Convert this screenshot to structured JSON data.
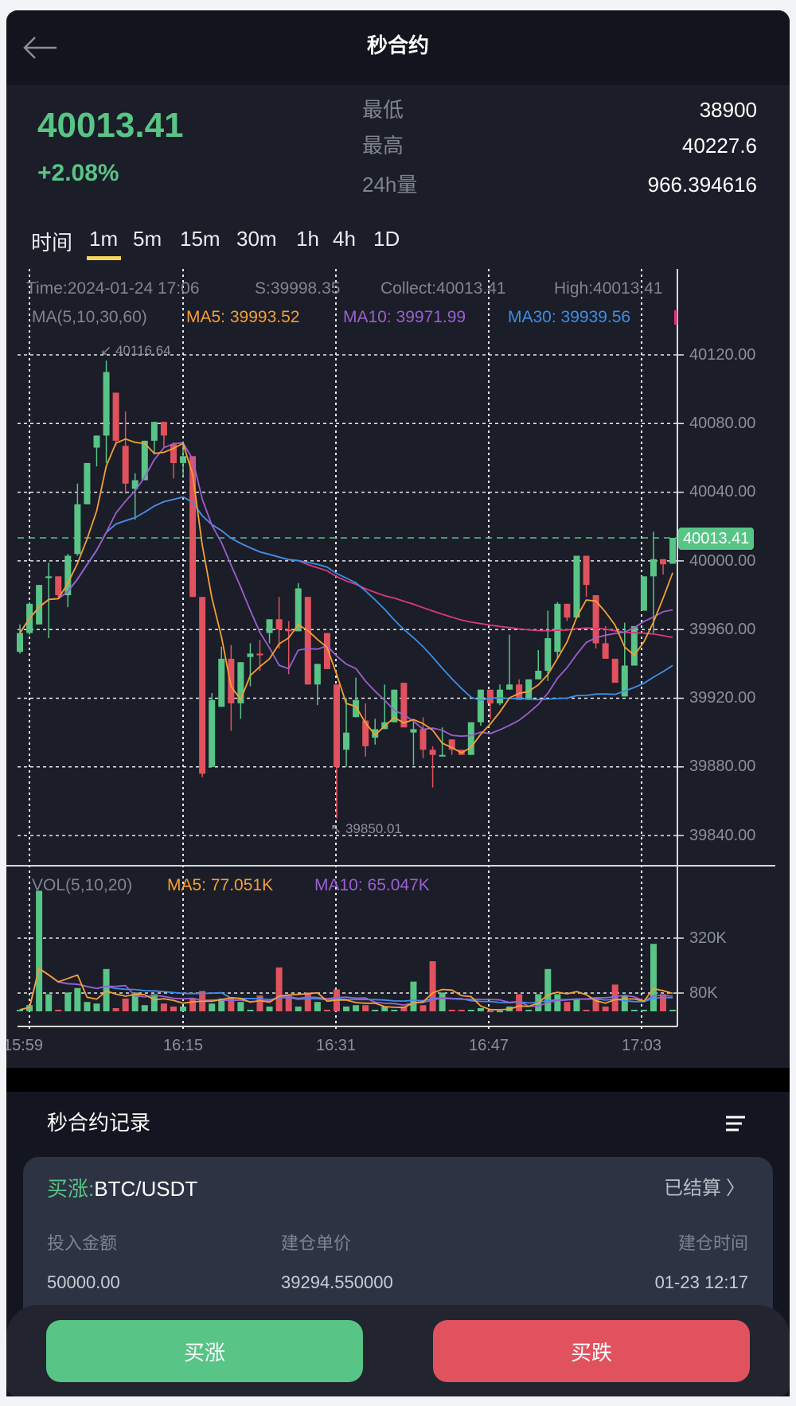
{
  "header": {
    "title": "秒合约",
    "back_icon": "arrow-left-icon"
  },
  "ticker": {
    "price": "40013.41",
    "change": "+2.08%",
    "stats": [
      {
        "label": "最低",
        "value": "38900"
      },
      {
        "label": "最高",
        "value": "40227.6"
      },
      {
        "label": "24h量",
        "value": "966.394616"
      }
    ]
  },
  "intervals": {
    "label": "时间",
    "items": [
      "1m",
      "5m",
      "15m",
      "30m",
      "1h",
      "4h",
      "1D"
    ],
    "active": "1m"
  },
  "colors": {
    "up": "#58c486",
    "down": "#e0525e",
    "ma5": "#f5a033",
    "ma10": "#9b5fd0",
    "ma30": "#3d8fe8",
    "ma60": "#d93a78",
    "active_tab": "#f5d65a"
  },
  "chart_info": {
    "time": "Time:2024-01-24 17:06",
    "open": "S:39998.35",
    "close": "Collect:40013.41",
    "high": "High:40013.41",
    "ma_label": "MA(5,10,30,60)",
    "ma5": "MA5: 39993.52",
    "ma10": "MA10: 39971.99",
    "ma30": "MA30: 39939.56",
    "vol_label": "VOL(5,10,20)",
    "vol_ma5": "MA5: 77.051K",
    "vol_ma10": "MA10: 65.047K",
    "max_mark": "40116.64",
    "min_mark": "39850.01",
    "last_price": "40013.41"
  },
  "chart_data": {
    "type": "candlestick",
    "price_ticks": [
      "40120.00",
      "40080.00",
      "40040.00",
      "40000.00",
      "39960.00",
      "39920.00",
      "39880.00",
      "39840.00"
    ],
    "volume_ticks": [
      "320K",
      "80K"
    ],
    "time_ticks": [
      "15:59",
      "16:15",
      "16:31",
      "16:47",
      "17:03"
    ],
    "ylim": [
      39840,
      40120
    ],
    "grid": true,
    "candles_fields": [
      "time",
      "open",
      "high",
      "low",
      "close",
      "volume"
    ],
    "candles": [
      [
        "15:58",
        39947,
        39963,
        39946,
        39958,
        7000
      ],
      [
        "15:59",
        39958,
        39976,
        39957,
        39975,
        27000
      ],
      [
        "16:00",
        39963,
        39986,
        39963,
        39986,
        527000
      ],
      [
        "16:01",
        39990,
        39999,
        39955,
        39991,
        75000
      ],
      [
        "16:02",
        39991,
        39991,
        39979,
        39980,
        7000
      ],
      [
        "16:03",
        39980,
        40004,
        39973,
        40003,
        82000
      ],
      [
        "16:04",
        40004,
        40045,
        40003,
        40033,
        102000
      ],
      [
        "16:05",
        40033,
        40057,
        40033,
        40057,
        41000
      ],
      [
        "16:06",
        40066,
        40073,
        40055,
        40073,
        34000
      ],
      [
        "16:07",
        40073,
        40116.64,
        40057,
        40110,
        185000
      ],
      [
        "16:08",
        40098,
        40098,
        40067,
        40070,
        14000
      ],
      [
        "16:09",
        40067,
        40087,
        40039,
        40045,
        56000
      ],
      [
        "16:10",
        40042,
        40051,
        40024,
        40047,
        82000
      ],
      [
        "16:11",
        40047,
        40070,
        40047,
        40070,
        27000
      ],
      [
        "16:12",
        40070,
        40081,
        40062,
        40081,
        75000
      ],
      [
        "16:13",
        40081,
        40081,
        40066,
        40073,
        34000
      ],
      [
        "16:14",
        40068,
        40069,
        40048,
        40057,
        21000
      ],
      [
        "16:15",
        40057,
        40069,
        40049,
        40061,
        21000
      ],
      [
        "16:16",
        40061,
        40061,
        39979,
        39979,
        56000
      ],
      [
        "16:17",
        39979,
        39979,
        39874,
        39876,
        89000
      ],
      [
        "16:18",
        39880,
        39923,
        39880,
        39919,
        34000
      ],
      [
        "16:19",
        39915,
        39950,
        39915,
        39943,
        56000
      ],
      [
        "16:20",
        39943,
        39951,
        39901,
        39917,
        62000
      ],
      [
        "16:21",
        39917,
        39941,
        39908,
        39941,
        41000
      ],
      [
        "16:22",
        39944,
        39952,
        39927,
        39946,
        7000
      ],
      [
        "16:23",
        39946,
        39954,
        39936,
        39945,
        69000
      ],
      [
        "16:24",
        39958,
        39966,
        39952,
        39966,
        21000
      ],
      [
        "16:25",
        39966,
        39979,
        39949,
        39960,
        192000
      ],
      [
        "16:26",
        39960,
        39965,
        39934,
        39959,
        69000
      ],
      [
        "16:27",
        39959,
        39987,
        39959,
        39984,
        21000
      ],
      [
        "16:28",
        39979,
        39979,
        39928,
        39928,
        82000
      ],
      [
        "16:29",
        39928,
        39940,
        39916,
        39940,
        41000
      ],
      [
        "16:30",
        39958,
        39958,
        39937,
        39937,
        7000
      ],
      [
        "16:31",
        39928,
        39928,
        39850.01,
        39880,
        96000
      ],
      [
        "16:32",
        39890,
        39920,
        39880,
        39900,
        21000
      ],
      [
        "16:33",
        39909,
        39932,
        39909,
        39919,
        27000
      ],
      [
        "16:34",
        39907,
        39917,
        39886,
        39892,
        27000
      ],
      [
        "16:35",
        39897,
        39908,
        39893,
        39902,
        7000
      ],
      [
        "16:36",
        39902,
        39928,
        39902,
        39906,
        21000
      ],
      [
        "16:37",
        39906,
        39925,
        39906,
        39925,
        7000
      ],
      [
        "16:38",
        39929,
        39929,
        39903,
        39903,
        21000
      ],
      [
        "16:39",
        39900,
        39907,
        39881,
        39902,
        130000
      ],
      [
        "16:40",
        39902,
        39909,
        39885,
        39890,
        27000
      ],
      [
        "16:41",
        39890,
        39892,
        39868,
        39887,
        219000
      ],
      [
        "16:42",
        39886,
        39903,
        39886,
        39887,
        82000
      ],
      [
        "16:43",
        39896,
        39896,
        39887,
        39890,
        7000
      ],
      [
        "16:44",
        39890,
        39890,
        39887,
        39887,
        7000
      ],
      [
        "16:45",
        39887,
        39906,
        39887,
        39906,
        7000
      ],
      [
        "16:46",
        39906,
        39925,
        39904,
        39925,
        14000
      ],
      [
        "16:47",
        39925,
        39925,
        39908,
        39917,
        3000
      ],
      [
        "16:48",
        39917,
        39928,
        39916,
        39925,
        3000
      ],
      [
        "16:49",
        39925,
        39957,
        39925,
        39928,
        21000
      ],
      [
        "16:50",
        39928,
        39931,
        39919,
        39919,
        75000
      ],
      [
        "16:51",
        39919,
        39931,
        39919,
        39931,
        7000
      ],
      [
        "16:52",
        39931,
        39948,
        39931,
        39936,
        75000
      ],
      [
        "16:53",
        39936,
        39971,
        39930,
        39955,
        185000
      ],
      [
        "16:54",
        39947,
        39976,
        39943,
        39975,
        75000
      ],
      [
        "16:55",
        39975,
        39975,
        39965,
        39967,
        41000
      ],
      [
        "16:56",
        39967,
        40003,
        39967,
        40003,
        55000
      ],
      [
        "16:57",
        40003,
        40003,
        39979,
        39986,
        7000
      ],
      [
        "16:58",
        39980,
        39980,
        39949,
        39952,
        55000
      ],
      [
        "16:59",
        39952,
        39962,
        39943,
        39943,
        21000
      ],
      [
        "17:00",
        39943,
        39943,
        39929,
        39929,
        117000
      ],
      [
        "17:01",
        39921,
        39964,
        39921,
        39939,
        69000
      ],
      [
        "17:02",
        39939,
        39962,
        39939,
        39962,
        7000
      ],
      [
        "17:03",
        39971,
        39991,
        39971,
        39991,
        7000
      ],
      [
        "17:04",
        39991,
        40017,
        39958,
        40001,
        295000
      ],
      [
        "17:05",
        40001,
        40001,
        39992,
        39998,
        75000
      ],
      [
        "17:06",
        39998.35,
        40013.41,
        39998.35,
        40013.41,
        7000
      ]
    ]
  },
  "records": {
    "title": "秒合约记录",
    "menu_icon": "list-filter-icon",
    "item": {
      "direction": "买涨:",
      "pair": "BTC/USDT",
      "status": "已结算",
      "columns": [
        "投入金额",
        "建仓单价",
        "建仓时间"
      ],
      "values": [
        "50000.00",
        "39294.550000",
        "01-23 12:17"
      ]
    }
  },
  "actions": {
    "buy_up": "买涨",
    "buy_down": "买跌"
  }
}
